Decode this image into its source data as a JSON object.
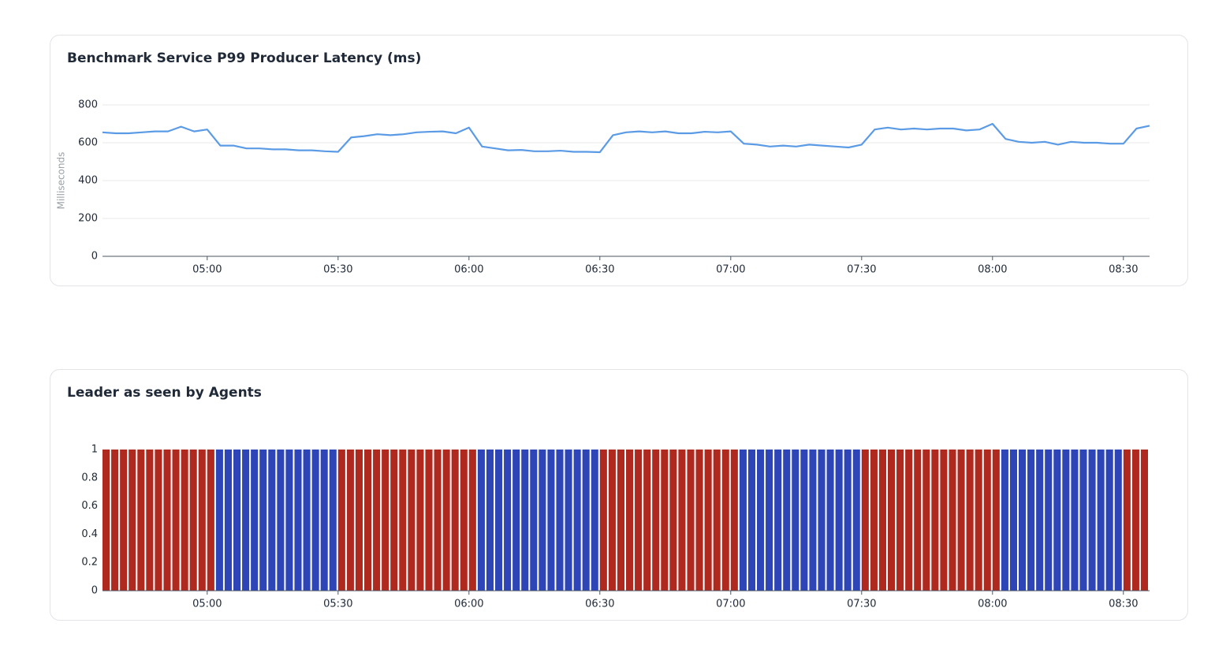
{
  "chart_data": [
    {
      "type": "line",
      "title": "Benchmark Service P99 Producer Latency (ms)",
      "ylabel": "Milliseconds",
      "x": [
        "04:36",
        "04:39",
        "04:42",
        "04:45",
        "04:48",
        "04:51",
        "04:54",
        "04:57",
        "05:00",
        "05:03",
        "05:06",
        "05:09",
        "05:12",
        "05:15",
        "05:18",
        "05:21",
        "05:24",
        "05:27",
        "05:30",
        "05:33",
        "05:36",
        "05:39",
        "05:42",
        "05:45",
        "05:48",
        "05:51",
        "05:54",
        "05:57",
        "06:00",
        "06:03",
        "06:06",
        "06:09",
        "06:12",
        "06:15",
        "06:18",
        "06:21",
        "06:24",
        "06:27",
        "06:30",
        "06:33",
        "06:36",
        "06:39",
        "06:42",
        "06:45",
        "06:48",
        "06:51",
        "06:54",
        "06:57",
        "07:00",
        "07:03",
        "07:06",
        "07:09",
        "07:12",
        "07:15",
        "07:18",
        "07:21",
        "07:24",
        "07:27",
        "07:30",
        "07:33",
        "07:36",
        "07:39",
        "07:42",
        "07:45",
        "07:48",
        "07:51",
        "07:54",
        "07:57",
        "08:00",
        "08:03",
        "08:06",
        "08:09",
        "08:12",
        "08:15",
        "08:18",
        "08:21",
        "08:24",
        "08:27",
        "08:30",
        "08:33",
        "08:36"
      ],
      "values": [
        655,
        650,
        650,
        655,
        660,
        660,
        685,
        660,
        670,
        585,
        585,
        570,
        570,
        565,
        565,
        560,
        560,
        555,
        552,
        628,
        635,
        645,
        640,
        645,
        655,
        658,
        660,
        650,
        680,
        580,
        570,
        560,
        562,
        555,
        555,
        558,
        552,
        552,
        550,
        640,
        655,
        660,
        655,
        660,
        650,
        650,
        658,
        655,
        660,
        595,
        590,
        580,
        585,
        580,
        590,
        585,
        580,
        575,
        590,
        670,
        680,
        670,
        675,
        670,
        675,
        675,
        665,
        670,
        700,
        620,
        605,
        600,
        605,
        590,
        605,
        600,
        600,
        595,
        595,
        675,
        690
      ],
      "color": "#5b9be6",
      "xlim": [
        "04:36",
        "08:36"
      ],
      "xticks": [
        "05:00",
        "05:30",
        "06:00",
        "06:30",
        "07:00",
        "07:30",
        "08:00",
        "08:30"
      ],
      "ylim": [
        0,
        800
      ],
      "yticks": [
        0,
        200,
        400,
        600,
        800
      ],
      "grid": true
    },
    {
      "type": "histogram",
      "title": "Leader as seen by Agents",
      "bins": [
        "04:36",
        "04:38",
        "04:40",
        "04:42",
        "04:44",
        "04:46",
        "04:48",
        "04:50",
        "04:52",
        "04:54",
        "04:56",
        "04:58",
        "05:00",
        "05:02",
        "05:04",
        "05:06",
        "05:08",
        "05:10",
        "05:12",
        "05:14",
        "05:16",
        "05:18",
        "05:20",
        "05:22",
        "05:24",
        "05:26",
        "05:28",
        "05:30",
        "05:32",
        "05:34",
        "05:36",
        "05:38",
        "05:40",
        "05:42",
        "05:44",
        "05:46",
        "05:48",
        "05:50",
        "05:52",
        "05:54",
        "05:56",
        "05:58",
        "06:00",
        "06:02",
        "06:04",
        "06:06",
        "06:08",
        "06:10",
        "06:12",
        "06:14",
        "06:16",
        "06:18",
        "06:20",
        "06:22",
        "06:24",
        "06:26",
        "06:28",
        "06:30",
        "06:32",
        "06:34",
        "06:36",
        "06:38",
        "06:40",
        "06:42",
        "06:44",
        "06:46",
        "06:48",
        "06:50",
        "06:52",
        "06:54",
        "06:56",
        "06:58",
        "07:00",
        "07:02",
        "07:04",
        "07:06",
        "07:08",
        "07:10",
        "07:12",
        "07:14",
        "07:16",
        "07:18",
        "07:20",
        "07:22",
        "07:24",
        "07:26",
        "07:28",
        "07:30",
        "07:32",
        "07:34",
        "07:36",
        "07:38",
        "07:40",
        "07:42",
        "07:44",
        "07:46",
        "07:48",
        "07:50",
        "07:52",
        "07:54",
        "07:56",
        "07:58",
        "08:00",
        "08:02",
        "08:04",
        "08:06",
        "08:08",
        "08:10",
        "08:12",
        "08:14",
        "08:16",
        "08:18",
        "08:20",
        "08:22",
        "08:24",
        "08:26",
        "08:28",
        "08:30",
        "08:32",
        "08:34",
        "08:36"
      ],
      "values": [
        1,
        1,
        1,
        1,
        1,
        1,
        1,
        1,
        1,
        1,
        1,
        1,
        1,
        1,
        1,
        1,
        1,
        1,
        1,
        1,
        1,
        1,
        1,
        1,
        1,
        1,
        1,
        1,
        1,
        1,
        1,
        1,
        1,
        1,
        1,
        1,
        1,
        1,
        1,
        1,
        1,
        1,
        1,
        1,
        1,
        1,
        1,
        1,
        1,
        1,
        1,
        1,
        1,
        1,
        1,
        1,
        1,
        1,
        1,
        1,
        1,
        1,
        1,
        1,
        1,
        1,
        1,
        1,
        1,
        1,
        1,
        1,
        1,
        1,
        1,
        1,
        1,
        1,
        1,
        1,
        1,
        1,
        1,
        1,
        1,
        1,
        1,
        1,
        1,
        1,
        1,
        1,
        1,
        1,
        1,
        1,
        1,
        1,
        1,
        1,
        1,
        1,
        1,
        1,
        1,
        1,
        1,
        1,
        1,
        1,
        1,
        1,
        1,
        1,
        1,
        1,
        1,
        1,
        1,
        1
      ],
      "colors": [
        "#b0291f",
        "#b0291f",
        "#b0291f",
        "#b0291f",
        "#b0291f",
        "#b0291f",
        "#b0291f",
        "#b0291f",
        "#b0291f",
        "#b0291f",
        "#b0291f",
        "#b0291f",
        "#b0291f",
        "#2e45b8",
        "#2e45b8",
        "#2e45b8",
        "#2e45b8",
        "#2e45b8",
        "#2e45b8",
        "#2e45b8",
        "#2e45b8",
        "#2e45b8",
        "#2e45b8",
        "#2e45b8",
        "#2e45b8",
        "#2e45b8",
        "#2e45b8",
        "#b0291f",
        "#b0291f",
        "#b0291f",
        "#b0291f",
        "#b0291f",
        "#b0291f",
        "#b0291f",
        "#b0291f",
        "#b0291f",
        "#b0291f",
        "#b0291f",
        "#b0291f",
        "#b0291f",
        "#b0291f",
        "#b0291f",
        "#b0291f",
        "#2e45b8",
        "#2e45b8",
        "#2e45b8",
        "#2e45b8",
        "#2e45b8",
        "#2e45b8",
        "#2e45b8",
        "#2e45b8",
        "#2e45b8",
        "#2e45b8",
        "#2e45b8",
        "#2e45b8",
        "#2e45b8",
        "#2e45b8",
        "#b0291f",
        "#b0291f",
        "#b0291f",
        "#b0291f",
        "#b0291f",
        "#b0291f",
        "#b0291f",
        "#b0291f",
        "#b0291f",
        "#b0291f",
        "#b0291f",
        "#b0291f",
        "#b0291f",
        "#b0291f",
        "#b0291f",
        "#b0291f",
        "#2e45b8",
        "#2e45b8",
        "#2e45b8",
        "#2e45b8",
        "#2e45b8",
        "#2e45b8",
        "#2e45b8",
        "#2e45b8",
        "#2e45b8",
        "#2e45b8",
        "#2e45b8",
        "#2e45b8",
        "#2e45b8",
        "#2e45b8",
        "#b0291f",
        "#b0291f",
        "#b0291f",
        "#b0291f",
        "#b0291f",
        "#b0291f",
        "#b0291f",
        "#b0291f",
        "#b0291f",
        "#b0291f",
        "#b0291f",
        "#b0291f",
        "#b0291f",
        "#b0291f",
        "#b0291f",
        "#b0291f",
        "#2e45b8",
        "#2e45b8",
        "#2e45b8",
        "#2e45b8",
        "#2e45b8",
        "#2e45b8",
        "#2e45b8",
        "#2e45b8",
        "#2e45b8",
        "#2e45b8",
        "#2e45b8",
        "#2e45b8",
        "#2e45b8",
        "#2e45b8",
        "#b0291f",
        "#b0291f",
        "#b0291f"
      ],
      "xlim": [
        "04:36",
        "08:36"
      ],
      "xticks": [
        "05:00",
        "05:30",
        "06:00",
        "06:30",
        "07:00",
        "07:30",
        "08:00",
        "08:30"
      ],
      "ylim": [
        0,
        1
      ],
      "yticks": [
        0,
        0.2,
        0.4,
        0.6,
        0.8,
        1
      ],
      "grid": false
    }
  ]
}
